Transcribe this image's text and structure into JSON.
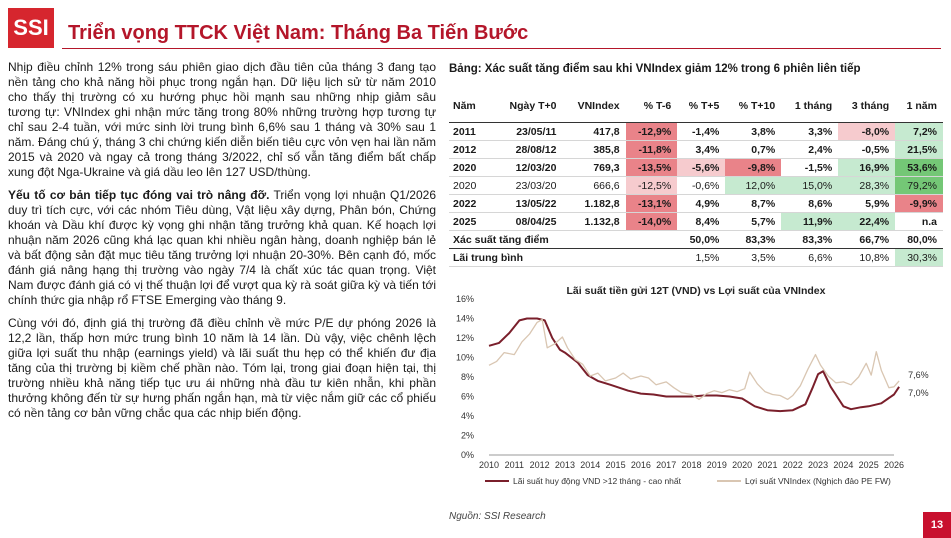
{
  "logo": {
    "text": "SSI"
  },
  "page": {
    "title": "Triển vọng TTCK Việt Nam: Tháng Ba Tiến Bước",
    "number": "13"
  },
  "left": {
    "p1": "Nhịp điều chỉnh 12% trong sáu phiên giao dịch đầu tiên của tháng 3 đang tạo nền tảng cho khả năng hồi phục trong ngắn hạn. Dữ liệu lịch sử từ năm 2010 cho thấy thị trường có xu hướng phục hồi mạnh sau những nhịp giảm sâu tương tự: VNIndex ghi nhận mức tăng trong 80% những trường hợp tương tự chỉ sau 2-4 tuần, với mức sinh lời trung bình 6,6% sau 1 tháng và 30% sau 1 năm. Đáng chú ý, tháng 3 chi chứng kiến diễn biến tiêu cực vỏn vẹn hai lần năm 2015 và 2020 và ngay cả trong tháng 3/2022, chỉ số vẫn tăng điểm bất chấp xung đột Nga-Ukraine và giá dầu leo lên 127 USD/thùng.",
    "p2_head": "Yếu tố cơ bản tiếp tục đóng vai trò nâng đỡ.",
    "p2": " Triển vọng lợi nhuận Q1/2026 duy trì tích cực, với các nhóm Tiêu dùng, Vật liệu xây dựng, Phân bón, Chứng khoán và Dầu khí được kỳ vọng ghi nhận tăng trưởng khả quan. Kế hoạch lợi nhuận năm 2026 cũng khá lạc quan khi nhiều ngân hàng, doanh nghiệp bán lẻ và bất động sản đặt mục tiêu tăng trưởng lợi nhuận 20-30%. Bên cạnh đó, mốc đánh giá nâng hạng thị trường vào ngày 7/4 là chất xúc tác quan trọng. Việt Nam được đánh giá có vị thế thuận lợi để vượt qua kỳ rà soát giữa kỳ và tiến tới chính thức gia nhập rổ FTSE Emerging vào tháng 9.",
    "p3": "Cùng với đó, định giá thị trường đã điều chỉnh về mức P/E dự phóng 2026 là 12,2 lần, thấp hơn mức trung bình 10 năm là 14 lần. Dù vậy, việc chênh lệch giữa lợi suất thu nhập (earnings yield) và lãi suất thu hẹp có thể khiến đư địa tăng của thị trường bị kiềm chế phần nào. Tóm lại, trong giai đoạn hiện tại, thị trường nhiều khả năng tiếp tục ưu ái những nhà đầu tư kiên nhẫn, khi phần thưởng không đến từ sự hưng phấn ngắn hạn, mà từ việc nắm giữ các cổ phiếu có nền tảng cơ bản vững chắc qua các nhịp biến động."
  },
  "table": {
    "title": "Bảng: Xác suất tăng điểm sau khi VNIndex giảm 12% trong 6 phiên liên tiếp",
    "headers": [
      "Năm",
      "Ngày T+0",
      "VNIndex",
      "% T-6",
      "% T+5",
      "% T+10",
      "1 tháng",
      "3 tháng",
      "1 năm"
    ],
    "rows": [
      [
        "2011",
        "23/05/11",
        "417,8",
        "-12,9%",
        "-1,4%",
        "3,8%",
        "3,3%",
        "-8,0%",
        "7,2%"
      ],
      [
        "2012",
        "28/08/12",
        "385,8",
        "-11,8%",
        "3,4%",
        "0,7%",
        "2,4%",
        "-0,5%",
        "21,5%"
      ],
      [
        "2020",
        "12/03/20",
        "769,3",
        "-13,5%",
        "-5,6%",
        "-9,8%",
        "-1,5%",
        "16,9%",
        "53,6%"
      ],
      [
        "2020",
        "23/03/20",
        "666,6",
        "-12,5%",
        "-0,6%",
        "12,0%",
        "15,0%",
        "28,3%",
        "79,2%"
      ],
      [
        "2022",
        "13/05/22",
        "1.182,8",
        "-13,1%",
        "4,9%",
        "8,7%",
        "8,6%",
        "5,9%",
        "-9,9%"
      ],
      [
        "2025",
        "08/04/25",
        "1.132,8",
        "-14,0%",
        "8,4%",
        "5,7%",
        "11,9%",
        "22,4%",
        "n.a"
      ]
    ],
    "summary": [
      {
        "label": "Xác suất tăng điểm",
        "values": [
          "50,0%",
          "83,3%",
          "83,3%",
          "66,7%",
          "80,0%"
        ]
      },
      {
        "label": "Lãi trung bình",
        "values": [
          "1,5%",
          "3,5%",
          "6,6%",
          "10,8%",
          "30,3%"
        ]
      }
    ]
  },
  "chart_data": {
    "type": "line",
    "title": "Lãi suất tiền gửi 12T (VND) vs Lợi suất của VNIndex",
    "ylim": [
      0,
      16
    ],
    "y_ticks": [
      "0%",
      "2%",
      "4%",
      "6%",
      "8%",
      "10%",
      "12%",
      "14%",
      "16%"
    ],
    "x_ticks": [
      "2010",
      "2011",
      "2012",
      "2013",
      "2014",
      "2015",
      "2016",
      "2017",
      "2018",
      "2019",
      "2020",
      "2021",
      "2022",
      "2023",
      "2024",
      "2025",
      "2026"
    ],
    "x_unit": "year",
    "series": [
      {
        "name": "Lãi suất huy động VND >12 tháng - cao nhất",
        "color": "#7a1f2b",
        "points": [
          [
            2010.0,
            11.2
          ],
          [
            2010.4,
            11.5
          ],
          [
            2010.8,
            12.5
          ],
          [
            2011.2,
            13.8
          ],
          [
            2011.5,
            14.0
          ],
          [
            2011.9,
            14.0
          ],
          [
            2012.2,
            13.8
          ],
          [
            2012.5,
            12.0
          ],
          [
            2012.8,
            10.8
          ],
          [
            2013.0,
            10.5
          ],
          [
            2013.5,
            9.5
          ],
          [
            2013.9,
            8.2
          ],
          [
            2014.3,
            7.6
          ],
          [
            2014.8,
            7.2
          ],
          [
            2015.5,
            6.6
          ],
          [
            2016.0,
            6.3
          ],
          [
            2016.5,
            6.2
          ],
          [
            2017.0,
            6.0
          ],
          [
            2017.5,
            6.0
          ],
          [
            2018.0,
            6.0
          ],
          [
            2018.5,
            6.1
          ],
          [
            2019.0,
            6.1
          ],
          [
            2019.5,
            6.0
          ],
          [
            2020.0,
            5.8
          ],
          [
            2020.5,
            5.0
          ],
          [
            2021.0,
            4.6
          ],
          [
            2021.5,
            4.5
          ],
          [
            2022.0,
            4.6
          ],
          [
            2022.5,
            5.2
          ],
          [
            2022.8,
            7.0
          ],
          [
            2023.0,
            8.3
          ],
          [
            2023.2,
            8.6
          ],
          [
            2023.5,
            7.0
          ],
          [
            2023.8,
            5.8
          ],
          [
            2024.0,
            5.0
          ],
          [
            2024.3,
            4.7
          ],
          [
            2024.7,
            4.9
          ],
          [
            2025.0,
            5.0
          ],
          [
            2025.5,
            5.3
          ],
          [
            2026.0,
            6.2
          ],
          [
            2026.2,
            7.0
          ]
        ]
      },
      {
        "name": "Lợi suất VNIndex (Nghịch đảo PE FW)",
        "color": "#d9c6b2",
        "points": [
          [
            2010.0,
            9.2
          ],
          [
            2010.3,
            9.6
          ],
          [
            2010.6,
            10.5
          ],
          [
            2011.0,
            10.3
          ],
          [
            2011.3,
            11.6
          ],
          [
            2011.6,
            12.4
          ],
          [
            2011.9,
            13.6
          ],
          [
            2012.1,
            13.9
          ],
          [
            2012.3,
            11.0
          ],
          [
            2012.6,
            11.4
          ],
          [
            2012.9,
            12.1
          ],
          [
            2013.1,
            11.0
          ],
          [
            2013.4,
            9.8
          ],
          [
            2013.7,
            9.3
          ],
          [
            2014.0,
            8.1
          ],
          [
            2014.3,
            8.4
          ],
          [
            2014.6,
            7.6
          ],
          [
            2015.0,
            7.9
          ],
          [
            2015.3,
            8.4
          ],
          [
            2015.6,
            7.8
          ],
          [
            2016.0,
            8.1
          ],
          [
            2016.3,
            7.9
          ],
          [
            2016.6,
            7.2
          ],
          [
            2017.0,
            7.5
          ],
          [
            2017.3,
            6.9
          ],
          [
            2017.6,
            6.4
          ],
          [
            2018.0,
            6.2
          ],
          [
            2018.3,
            5.7
          ],
          [
            2018.6,
            6.3
          ],
          [
            2018.9,
            6.6
          ],
          [
            2019.2,
            6.4
          ],
          [
            2019.5,
            6.7
          ],
          [
            2019.8,
            6.5
          ],
          [
            2020.1,
            6.8
          ],
          [
            2020.3,
            8.5
          ],
          [
            2020.6,
            7.3
          ],
          [
            2020.9,
            6.5
          ],
          [
            2021.2,
            6.2
          ],
          [
            2021.5,
            6.1
          ],
          [
            2021.8,
            5.7
          ],
          [
            2022.0,
            6.1
          ],
          [
            2022.3,
            7.1
          ],
          [
            2022.6,
            8.8
          ],
          [
            2022.9,
            10.3
          ],
          [
            2023.1,
            9.2
          ],
          [
            2023.4,
            8.1
          ],
          [
            2023.7,
            7.4
          ],
          [
            2024.0,
            7.5
          ],
          [
            2024.3,
            7.2
          ],
          [
            2024.6,
            8.0
          ],
          [
            2024.9,
            9.4
          ],
          [
            2025.1,
            8.2
          ],
          [
            2025.3,
            10.6
          ],
          [
            2025.5,
            8.7
          ],
          [
            2025.8,
            6.9
          ],
          [
            2026.0,
            7.0
          ],
          [
            2026.2,
            7.6
          ]
        ]
      }
    ],
    "annotations": [
      "7,6%",
      "7,0%"
    ]
  },
  "source": "Nguồn: SSI Research"
}
